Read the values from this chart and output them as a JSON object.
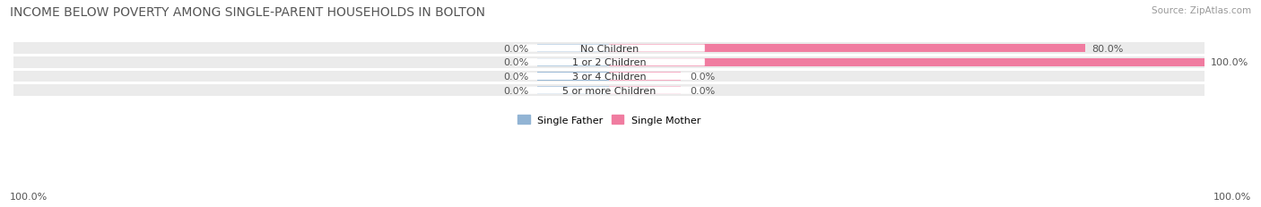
{
  "title": "INCOME BELOW POVERTY AMONG SINGLE-PARENT HOUSEHOLDS IN BOLTON",
  "source": "Source: ZipAtlas.com",
  "categories": [
    "No Children",
    "1 or 2 Children",
    "3 or 4 Children",
    "5 or more Children"
  ],
  "single_father": [
    0.0,
    0.0,
    0.0,
    0.0
  ],
  "single_mother": [
    80.0,
    100.0,
    0.0,
    0.0
  ],
  "father_color": "#92b4d4",
  "mother_color": "#f07ca0",
  "father_stub_color": "#a8c8e8",
  "mother_stub_color": "#f5a8c0",
  "bg_row_color": "#ebebeb",
  "bg_alt_color": "#e0e0e0",
  "bar_max": 100.0,
  "stub_size": 12.0,
  "left_label": "100.0%",
  "right_label": "100.0%",
  "title_fontsize": 10,
  "source_fontsize": 7.5,
  "label_fontsize": 8,
  "category_fontsize": 8,
  "legend_fontsize": 8
}
